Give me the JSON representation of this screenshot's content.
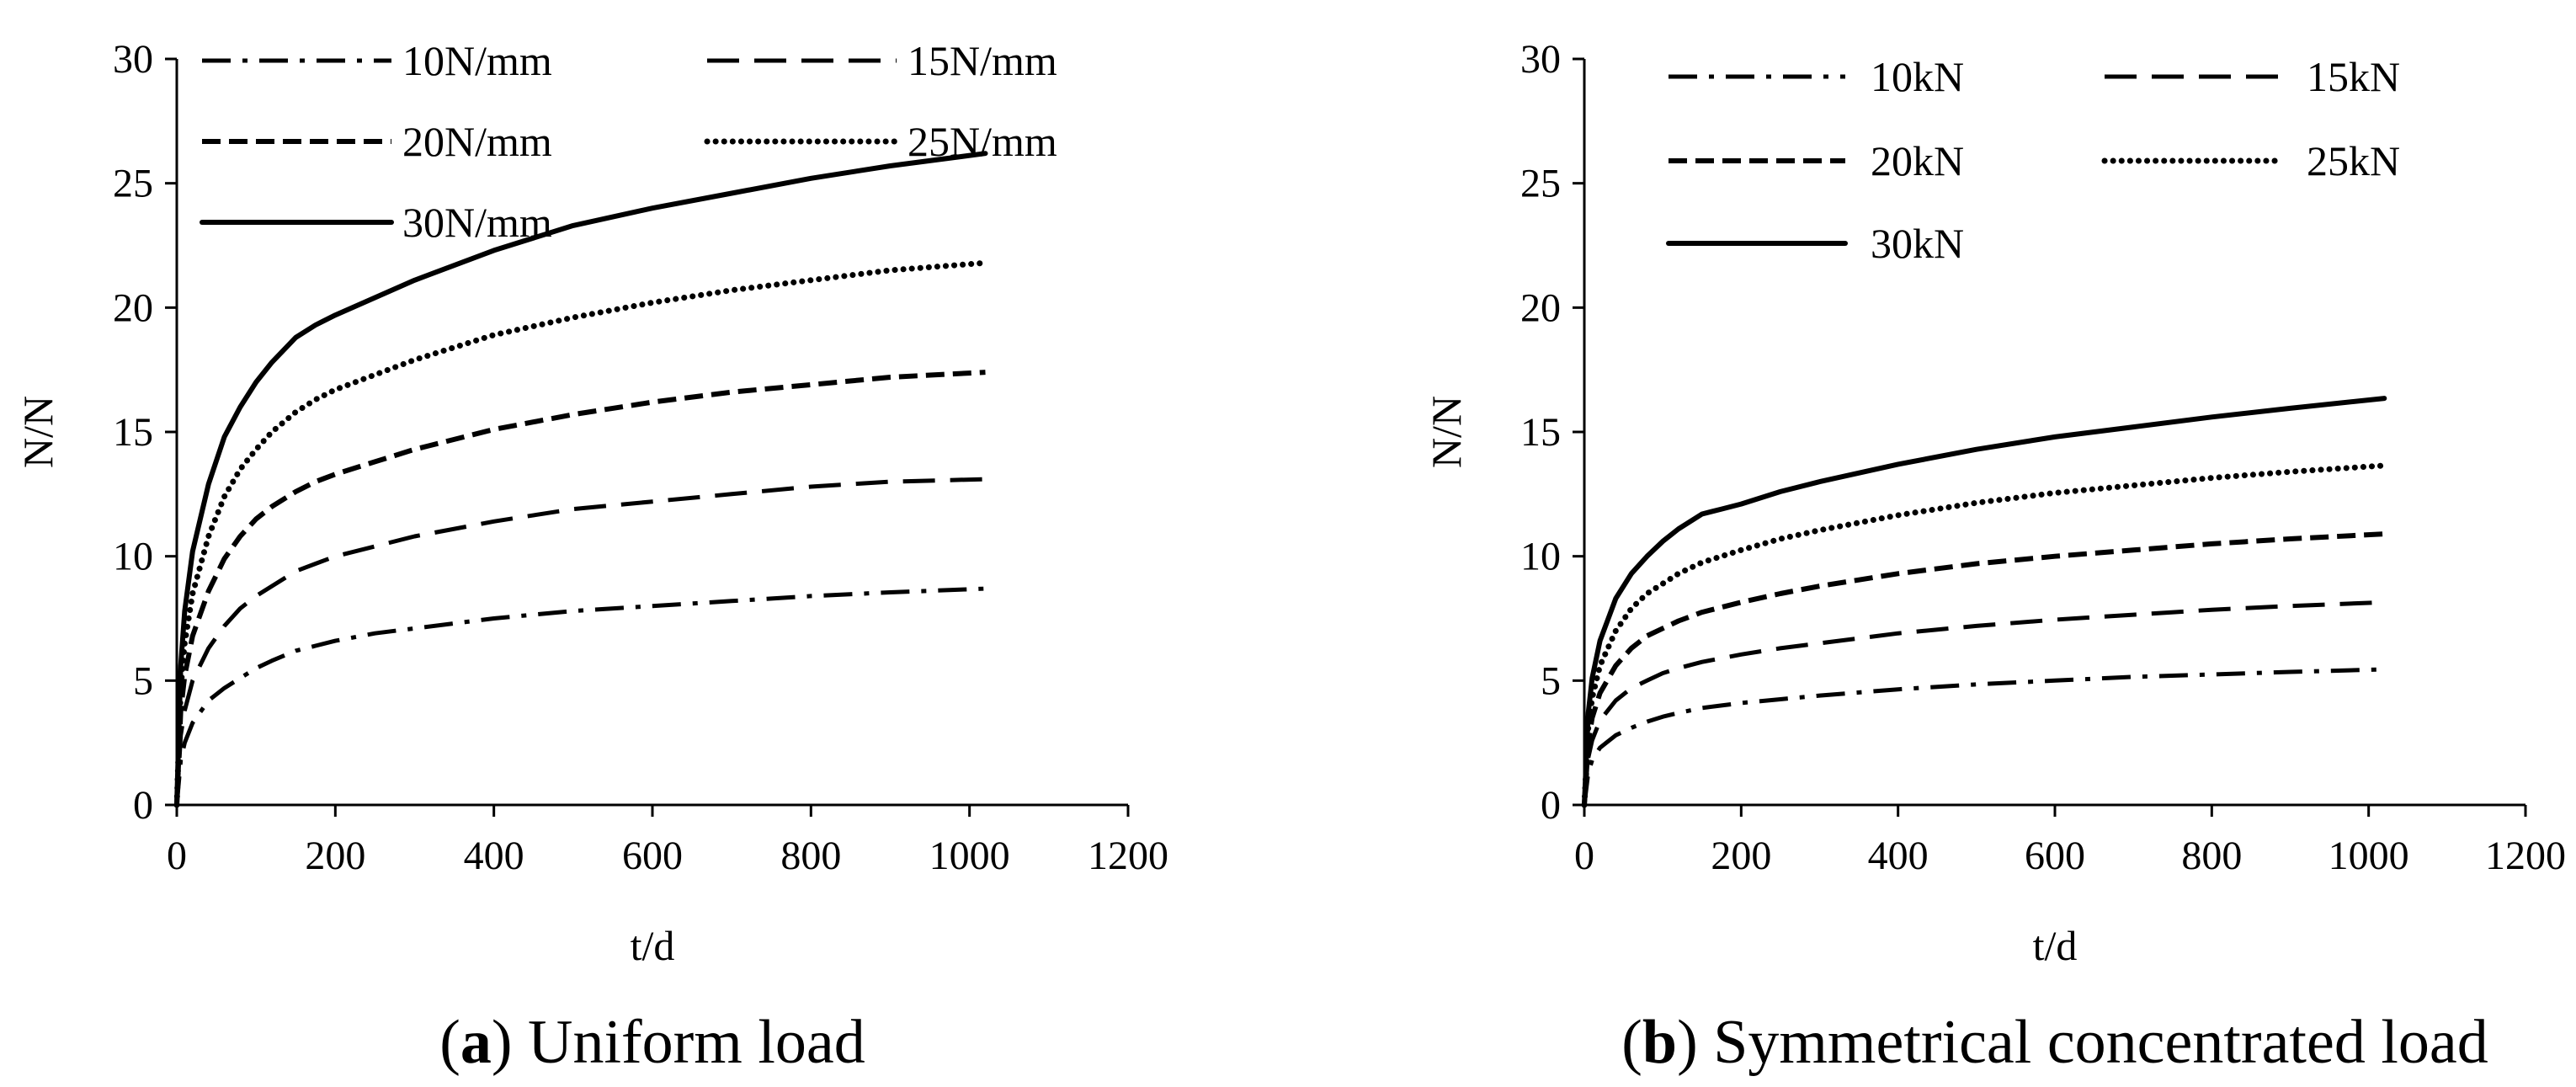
{
  "chart_data": [
    {
      "type": "line",
      "id": "a",
      "caption_letter": "a",
      "caption_text": ") Uniform load",
      "caption_open": "(",
      "xlabel": "t/d",
      "ylabel": "N/N",
      "xlim": [
        0,
        1200
      ],
      "ylim": [
        0,
        30
      ],
      "xticks": [
        "0",
        "200",
        "400",
        "600",
        "800",
        "1000",
        "1200"
      ],
      "yticks": [
        "0",
        "5",
        "10",
        "15",
        "20",
        "25",
        "30"
      ],
      "grid": false,
      "legend_position": "top",
      "x": [
        0,
        5,
        10,
        20,
        40,
        60,
        80,
        100,
        120,
        150,
        175,
        200,
        250,
        300,
        400,
        500,
        600,
        700,
        800,
        900,
        1020
      ],
      "series": [
        {
          "name": "10N/mm",
          "style": "dashdot",
          "values": [
            0,
            1.8,
            2.5,
            3.3,
            4.2,
            4.7,
            5.1,
            5.5,
            5.8,
            6.2,
            6.4,
            6.6,
            6.9,
            7.1,
            7.5,
            7.8,
            8.0,
            8.2,
            8.4,
            8.55,
            8.7
          ]
        },
        {
          "name": "15N/mm",
          "style": "dash",
          "values": [
            0,
            2.8,
            3.8,
            5.0,
            6.3,
            7.2,
            7.9,
            8.4,
            8.8,
            9.4,
            9.7,
            10.0,
            10.4,
            10.8,
            11.4,
            11.9,
            12.2,
            12.5,
            12.8,
            13.0,
            13.1
          ]
        },
        {
          "name": "20N/mm",
          "style": "shortdash",
          "values": [
            0,
            3.8,
            5.2,
            6.8,
            8.6,
            9.9,
            10.8,
            11.5,
            12.0,
            12.6,
            13.0,
            13.3,
            13.8,
            14.3,
            15.1,
            15.7,
            16.2,
            16.6,
            16.9,
            17.2,
            17.4
          ]
        },
        {
          "name": "25N/mm",
          "style": "dot",
          "values": [
            0,
            4.7,
            6.5,
            8.5,
            10.8,
            12.4,
            13.5,
            14.3,
            15.0,
            15.8,
            16.3,
            16.7,
            17.3,
            17.9,
            18.9,
            19.6,
            20.2,
            20.7,
            21.1,
            21.5,
            21.8
          ]
        },
        {
          "name": "30N/mm",
          "style": "solid",
          "values": [
            0,
            5.6,
            7.8,
            10.2,
            12.9,
            14.8,
            16.0,
            17.0,
            17.8,
            18.8,
            19.3,
            19.7,
            20.4,
            21.1,
            22.3,
            23.3,
            24.0,
            24.6,
            25.2,
            25.7,
            26.2
          ]
        }
      ]
    },
    {
      "type": "line",
      "id": "b",
      "caption_letter": "b",
      "caption_text": ") Symmetrical concentrated load",
      "caption_open": "(",
      "xlabel": "t/d",
      "ylabel": "N/N",
      "xlim": [
        0,
        1200
      ],
      "ylim": [
        0,
        30
      ],
      "xticks": [
        "0",
        "200",
        "400",
        "600",
        "800",
        "1000",
        "1200"
      ],
      "yticks": [
        "0",
        "5",
        "10",
        "15",
        "20",
        "25",
        "30"
      ],
      "grid": false,
      "legend_position": "top",
      "x": [
        0,
        5,
        10,
        20,
        40,
        60,
        80,
        100,
        120,
        150,
        175,
        200,
        250,
        300,
        400,
        500,
        600,
        700,
        800,
        900,
        1020
      ],
      "series": [
        {
          "name": "10kN",
          "style": "dashdot",
          "values": [
            0,
            1.3,
            1.8,
            2.3,
            2.8,
            3.1,
            3.35,
            3.55,
            3.7,
            3.9,
            4.0,
            4.1,
            4.25,
            4.4,
            4.65,
            4.85,
            5.0,
            5.15,
            5.25,
            5.35,
            5.45
          ]
        },
        {
          "name": "15kN",
          "style": "dash",
          "values": [
            0,
            1.9,
            2.6,
            3.4,
            4.2,
            4.7,
            5.0,
            5.3,
            5.5,
            5.75,
            5.9,
            6.05,
            6.3,
            6.5,
            6.9,
            7.2,
            7.45,
            7.65,
            7.85,
            8.0,
            8.15
          ]
        },
        {
          "name": "20kN",
          "style": "shortdash",
          "values": [
            0,
            2.5,
            3.5,
            4.5,
            5.6,
            6.3,
            6.8,
            7.1,
            7.4,
            7.75,
            7.95,
            8.15,
            8.5,
            8.8,
            9.3,
            9.7,
            10.0,
            10.25,
            10.5,
            10.7,
            10.9
          ]
        },
        {
          "name": "25kN",
          "style": "dot",
          "values": [
            0,
            3.1,
            4.3,
            5.6,
            7.0,
            7.9,
            8.5,
            8.9,
            9.3,
            9.75,
            10.0,
            10.25,
            10.7,
            11.05,
            11.65,
            12.15,
            12.55,
            12.85,
            13.15,
            13.4,
            13.65
          ]
        },
        {
          "name": "30kN",
          "style": "solid",
          "values": [
            0,
            3.7,
            5.1,
            6.6,
            8.3,
            9.3,
            10.0,
            10.6,
            11.1,
            11.7,
            11.9,
            12.1,
            12.6,
            13.0,
            13.7,
            14.3,
            14.8,
            15.2,
            15.6,
            15.95,
            16.35
          ]
        }
      ]
    }
  ]
}
